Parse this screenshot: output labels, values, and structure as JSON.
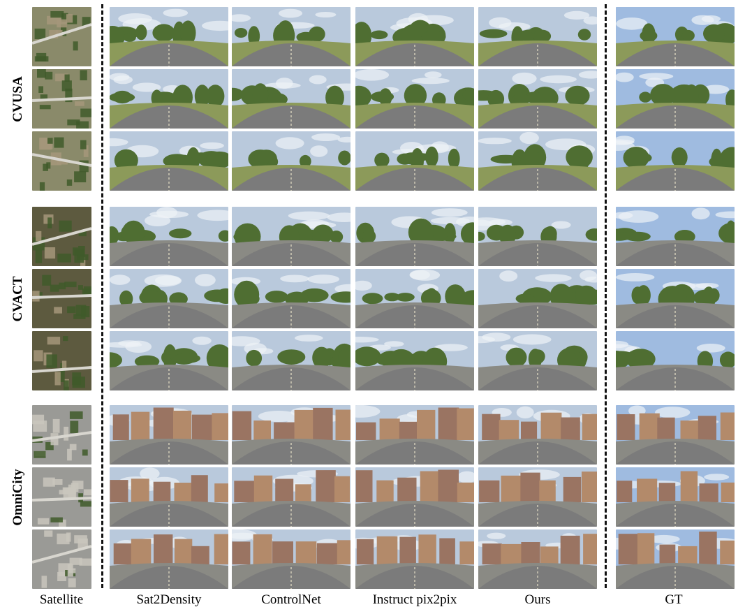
{
  "figure": {
    "groups": [
      {
        "label": "CVUSA",
        "scene": "rural",
        "rows": 3
      },
      {
        "label": "CVACT",
        "scene": "suburb",
        "rows": 3
      },
      {
        "label": "OmniCity",
        "scene": "city",
        "rows": 3
      }
    ],
    "columns": [
      {
        "label": "Satellite",
        "kind": "satellite"
      },
      {
        "label": "Sat2Density",
        "kind": "panorama"
      },
      {
        "label": "ControlNet",
        "kind": "panorama"
      },
      {
        "label": "Instruct pix2pix",
        "kind": "panorama"
      },
      {
        "label": "Ours",
        "kind": "panorama"
      },
      {
        "label": "GT",
        "kind": "panorama"
      }
    ],
    "colors": {
      "sky": "#b9c9dc",
      "vegetation": "#4f6e32",
      "road": "#7b7b7b",
      "building": "#b38a6a"
    }
  }
}
